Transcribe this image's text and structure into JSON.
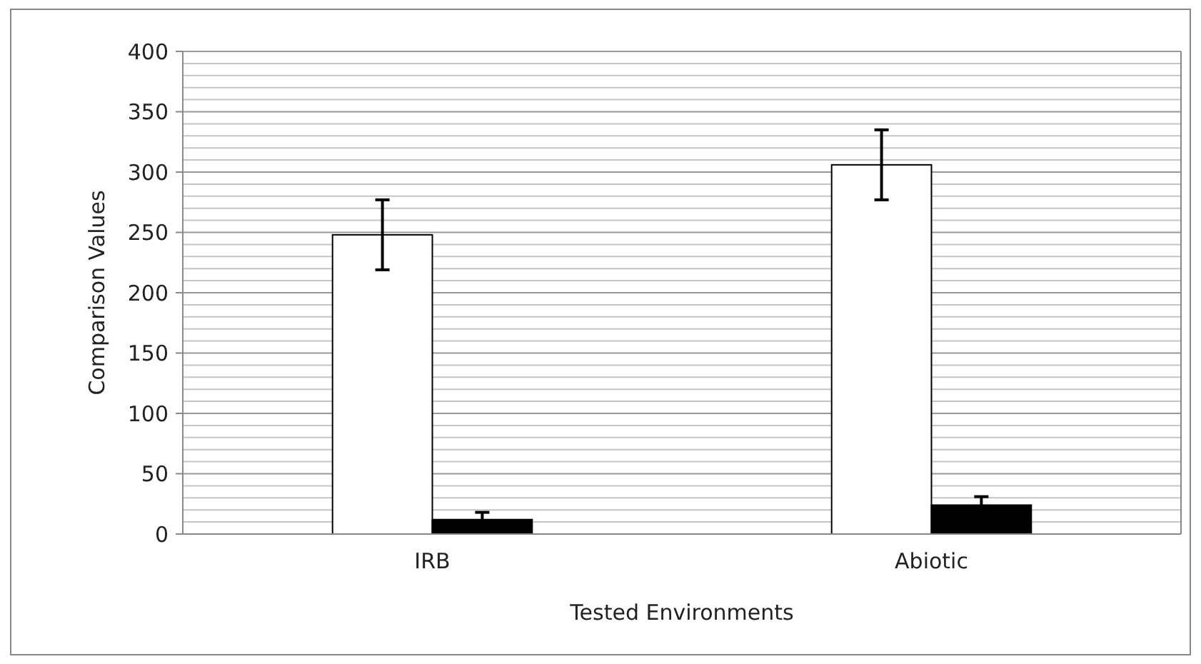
{
  "chart_data": {
    "type": "bar",
    "xlabel": "Tested Environments",
    "ylabel": "Comparison Values",
    "categories": [
      "IRB",
      "Abiotic"
    ],
    "series": [
      {
        "color": "#ffffff",
        "values": [
          248,
          306
        ],
        "errors": [
          29,
          29
        ]
      },
      {
        "color": "#000000",
        "values": [
          12,
          24
        ],
        "errors": [
          6,
          7
        ]
      }
    ],
    "ylim": [
      0,
      400
    ],
    "yticks": [
      0,
      {
        "value": 10,
        "label": null
      },
      {
        "value": 20,
        "label": null
      },
      {
        "value": 30,
        "label": null
      },
      {
        "value": 40,
        "label": null
      },
      50,
      {
        "value": 60,
        "label": null
      },
      {
        "value": 70,
        "label": null
      },
      {
        "value": 80,
        "label": null
      },
      {
        "value": 90,
        "label": null
      },
      100,
      {
        "value": 110,
        "label": null
      },
      {
        "value": 120,
        "label": null
      },
      {
        "value": 130,
        "label": null
      },
      {
        "value": 140,
        "label": null
      },
      150,
      {
        "value": 160,
        "label": null
      },
      {
        "value": 170,
        "label": null
      },
      {
        "value": 180,
        "label": null
      },
      {
        "value": 190,
        "label": null
      },
      200,
      {
        "value": 210,
        "label": null
      },
      {
        "value": 220,
        "label": null
      },
      {
        "value": 230,
        "label": null
      },
      {
        "value": 240,
        "label": null
      },
      250,
      {
        "value": 260,
        "label": null
      },
      {
        "value": 270,
        "label": null
      },
      {
        "value": 280,
        "label": null
      },
      {
        "value": 290,
        "label": null
      },
      300,
      {
        "value": 310,
        "label": null
      },
      {
        "value": 320,
        "label": null
      },
      {
        "value": 330,
        "label": null
      },
      {
        "value": 340,
        "label": null
      },
      350,
      {
        "value": 360,
        "label": null
      },
      {
        "value": 370,
        "label": null
      },
      {
        "value": 380,
        "label": null
      },
      {
        "value": 390,
        "label": null
      },
      400
    ],
    "grid": true
  }
}
